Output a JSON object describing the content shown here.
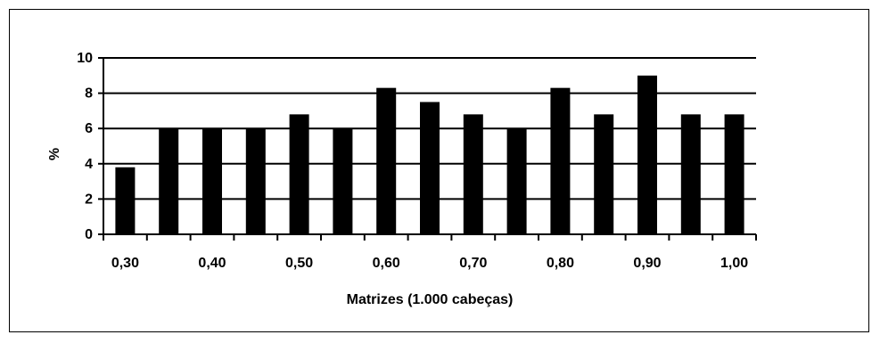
{
  "chart_data": {
    "type": "bar",
    "xlabel": "Matrizes (1.000 cabeças)",
    "ylabel": "%",
    "ylim": [
      0,
      10
    ],
    "yticks": [
      "0",
      "2",
      "4",
      "6",
      "8",
      "10"
    ],
    "xtick_labels": [
      "0,30",
      "0,40",
      "0,50",
      "0,60",
      "0,70",
      "0,80",
      "0,90",
      "1,00"
    ],
    "values": [
      3.8,
      6.0,
      6.0,
      6.0,
      6.8,
      6.0,
      8.3,
      7.5,
      6.8,
      6.0,
      8.3,
      6.8,
      9.0,
      6.8,
      6.8
    ],
    "grid": true,
    "colors": {
      "bar": "#000000",
      "grid": "#000000"
    }
  }
}
